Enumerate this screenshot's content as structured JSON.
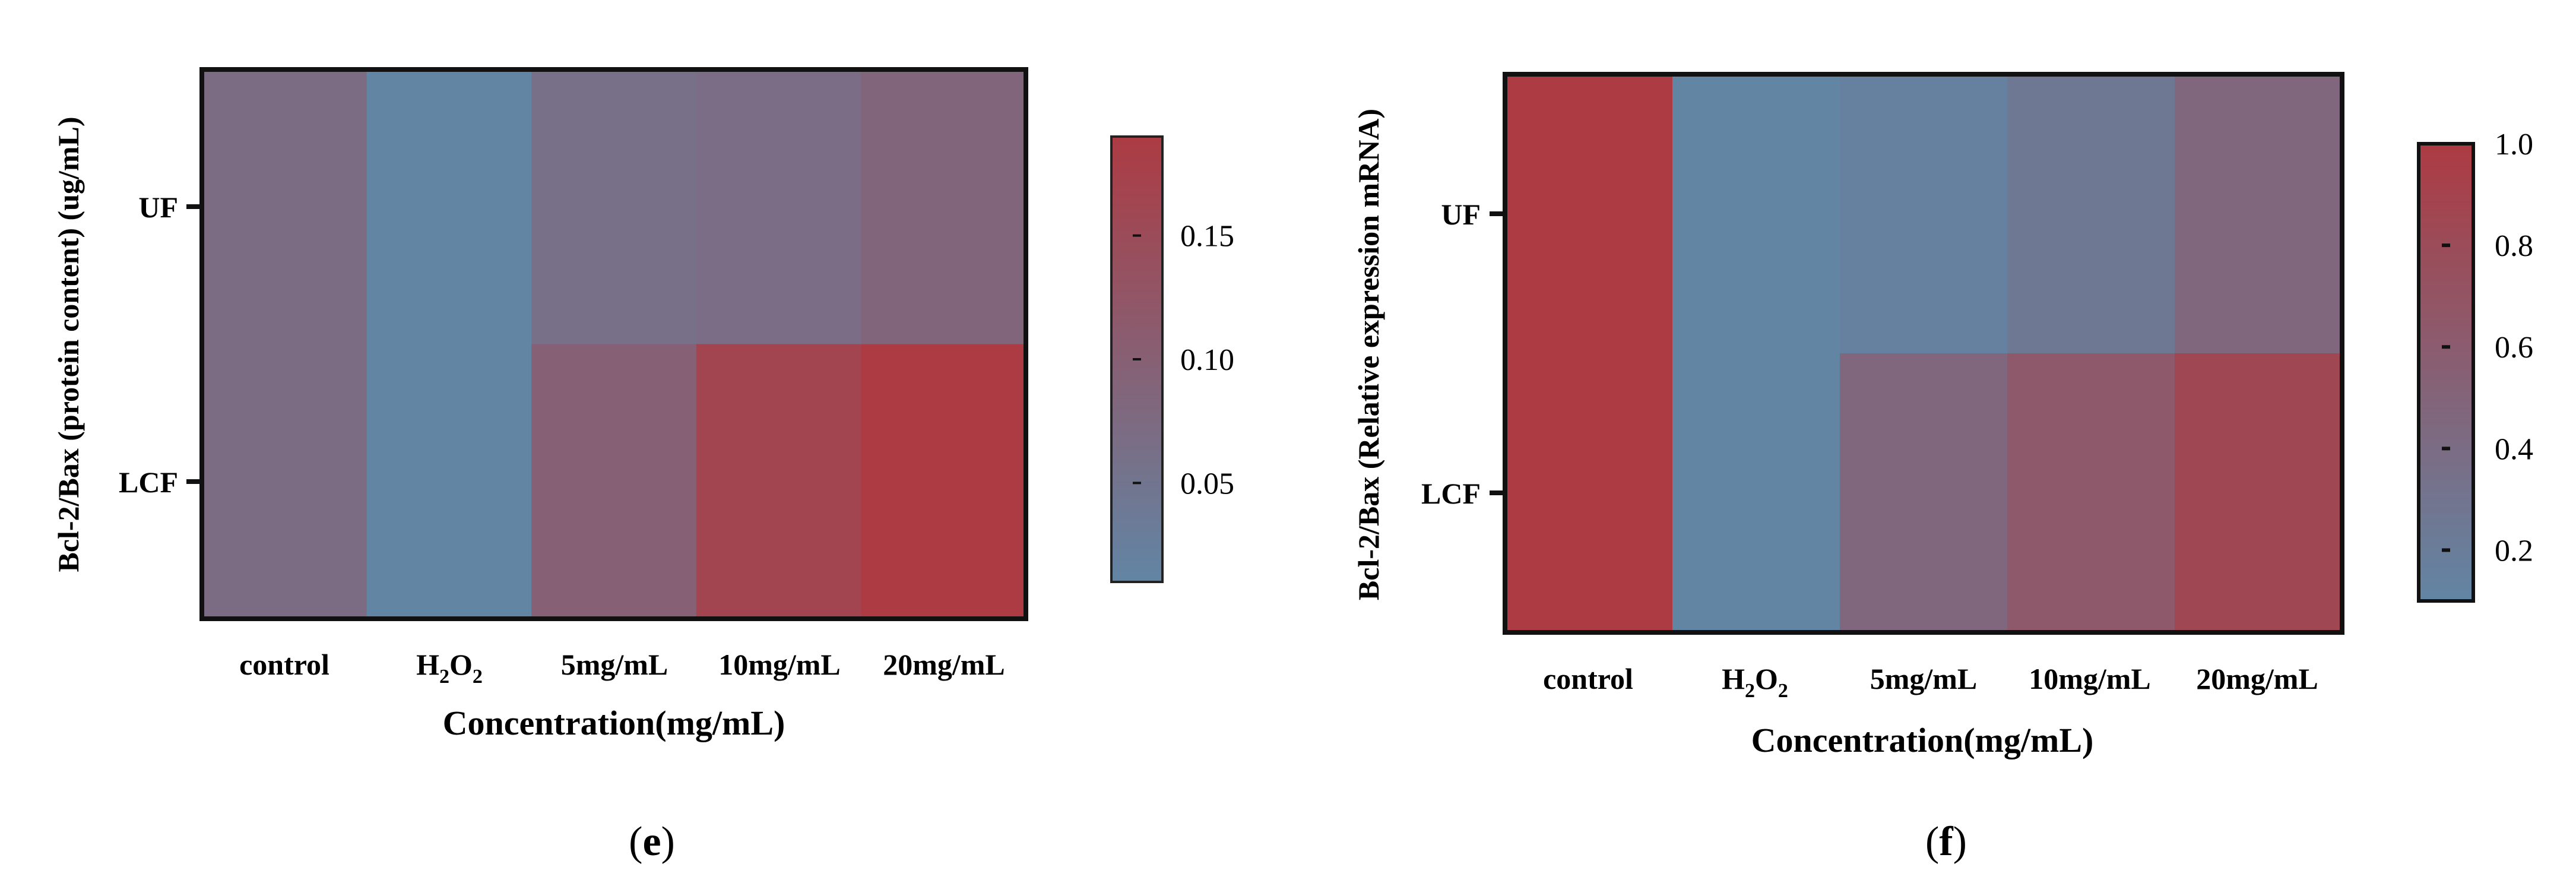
{
  "chart_data": [
    {
      "type": "heatmap",
      "panel_label": "e",
      "ylabel": "Bcl-2/Bax (protein content)  (ug/mL)",
      "xlabel": "Concentration(mg/mL)",
      "rows": [
        "UF",
        "LCF"
      ],
      "columns": [
        "control",
        "H2O2",
        "5mg/mL",
        "10mg/mL",
        "20mg/mL"
      ],
      "column_labels": [
        {
          "text": "control"
        },
        {
          "text": "H",
          "sub1": "2",
          "mid": "O",
          "sub2": "2"
        },
        {
          "text": "5mg/mL"
        },
        {
          "text": "10mg/mL"
        },
        {
          "text": "20mg/mL"
        }
      ],
      "values": [
        [
          0.07,
          0.01,
          0.062,
          0.068,
          0.086
        ],
        [
          0.07,
          0.01,
          0.098,
          0.166,
          0.19
        ]
      ],
      "colorbar": {
        "min": 0.01,
        "max": 0.19,
        "ticks": [
          0.05,
          0.1,
          0.15
        ],
        "tick_labels": [
          "0.05",
          "0.10",
          "0.15"
        ],
        "low_color": "#6285a4",
        "high_color": "#ac3b43"
      }
    },
    {
      "type": "heatmap",
      "panel_label": "f",
      "ylabel": "Bcl-2/Bax (Relative expression  mRNA)",
      "xlabel": "Concentration(mg/mL)",
      "rows": [
        "UF",
        "LCF"
      ],
      "columns": [
        "control",
        "H2O2",
        "5mg/mL",
        "10mg/mL",
        "20mg/mL"
      ],
      "column_labels": [
        {
          "text": "control"
        },
        {
          "text": "H",
          "sub1": "2",
          "mid": "O",
          "sub2": "2"
        },
        {
          "text": "5mg/mL"
        },
        {
          "text": "10mg/mL"
        },
        {
          "text": "20mg/mL"
        }
      ],
      "values": [
        [
          1.0,
          0.1,
          0.15,
          0.26,
          0.46
        ],
        [
          1.0,
          0.1,
          0.46,
          0.64,
          0.84
        ]
      ],
      "colorbar": {
        "min": 0.1,
        "max": 1.0,
        "ticks": [
          0.2,
          0.4,
          0.6,
          0.8,
          1.0
        ],
        "tick_labels": [
          "0.2",
          "0.4",
          "0.6",
          "0.8",
          "1.0"
        ],
        "low_color": "#6285a4",
        "high_color": "#ac3b43"
      }
    }
  ]
}
